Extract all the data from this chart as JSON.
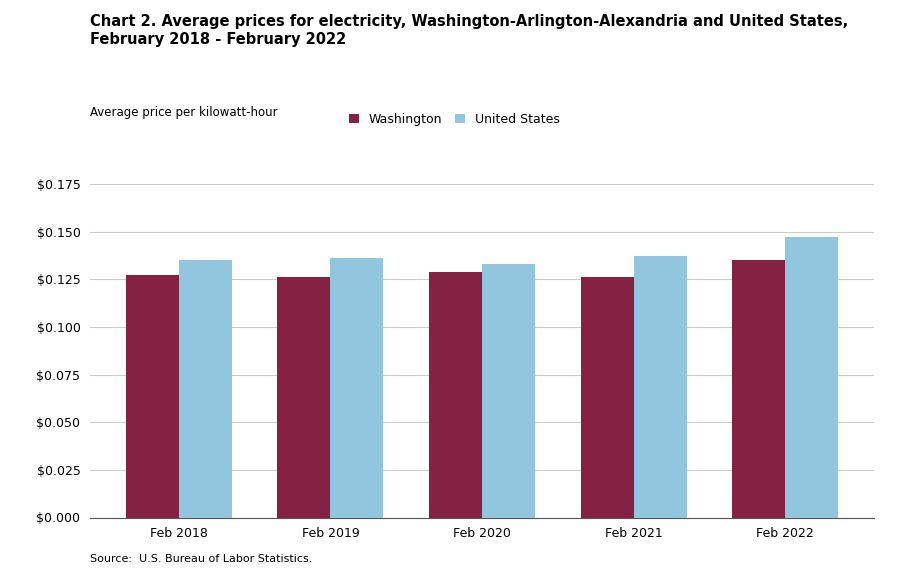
{
  "title_line1": "Chart 2. Average prices for electricity, Washington-Arlington-Alexandria and United States,",
  "title_line2": "February 2018 - February 2022",
  "ylabel": "Average price per kilowatt-hour",
  "source": "Source:  U.S. Bureau of Labor Statistics.",
  "categories": [
    "Feb 2018",
    "Feb 2019",
    "Feb 2020",
    "Feb 2021",
    "Feb 2022"
  ],
  "washington_values": [
    0.127,
    0.126,
    0.129,
    0.126,
    0.135
  ],
  "us_values": [
    0.135,
    0.136,
    0.133,
    0.137,
    0.147
  ],
  "washington_color": "#852244",
  "us_color": "#92C5DE",
  "bar_width": 0.35,
  "ylim": [
    0,
    0.175
  ],
  "yticks": [
    0.0,
    0.025,
    0.05,
    0.075,
    0.1,
    0.125,
    0.15,
    0.175
  ],
  "legend_washington": "Washington",
  "legend_us": "United States",
  "title_fontsize": 10.5,
  "axis_label_fontsize": 8.5,
  "tick_fontsize": 9,
  "legend_fontsize": 9,
  "source_fontsize": 8,
  "background_color": "#ffffff",
  "grid_color": "#cccccc"
}
